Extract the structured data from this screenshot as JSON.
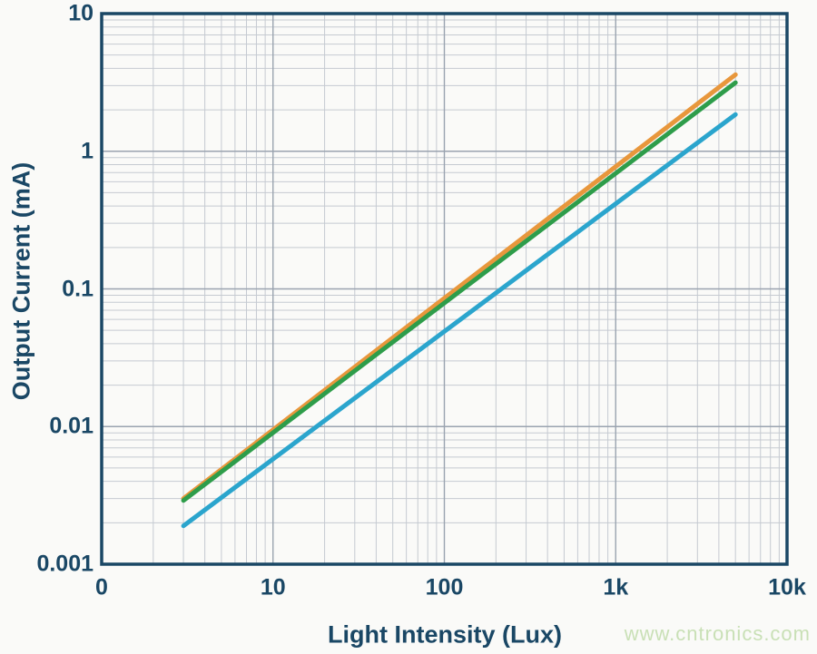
{
  "figure": {
    "background": "#fafaf8",
    "watermark": "www.cntronics.com",
    "watermark_color": "#c9e0b6"
  },
  "chart_data": {
    "type": "line",
    "title": "",
    "xlabel": "Light Intensity (Lux)",
    "ylabel": "Output Current (mA)",
    "x_scale": "log",
    "y_scale": "log",
    "xlim": [
      1,
      10000
    ],
    "ylim": [
      0.001,
      10
    ],
    "grid": true,
    "legend_position": "none",
    "axis_color": "#1a4765",
    "grid_minor_color": "#c5cad1",
    "grid_major_color": "#9aa3af",
    "x_ticks": [
      {
        "value": 1,
        "label": "0"
      },
      {
        "value": 10,
        "label": "10"
      },
      {
        "value": 100,
        "label": "100"
      },
      {
        "value": 1000,
        "label": "1k"
      },
      {
        "value": 10000,
        "label": "10k"
      }
    ],
    "y_ticks": [
      {
        "value": 10,
        "label": "10"
      },
      {
        "value": 1,
        "label": "1"
      },
      {
        "value": 0.1,
        "label": "0.1"
      },
      {
        "value": 0.01,
        "label": "0.01"
      },
      {
        "value": 0.001,
        "label": "0.001"
      }
    ],
    "series": [
      {
        "name": "orange-line",
        "color": "#e8973c",
        "points": [
          [
            3,
            0.003
          ],
          [
            5000,
            3.6
          ]
        ]
      },
      {
        "name": "green-line",
        "color": "#2e9d4a",
        "points": [
          [
            3,
            0.0029
          ],
          [
            5000,
            3.15
          ]
        ]
      },
      {
        "name": "blue-line",
        "color": "#2ba5cd",
        "points": [
          [
            3,
            0.0019
          ],
          [
            5000,
            1.85
          ]
        ]
      }
    ]
  }
}
